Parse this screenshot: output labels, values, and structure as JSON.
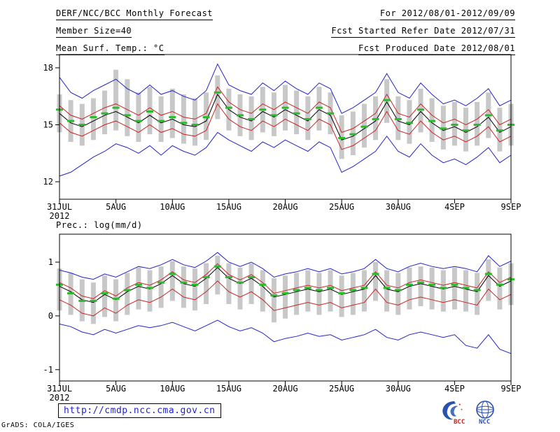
{
  "header": {
    "left": [
      "DERF/NCC/BCC Monthly Forecast",
      "Member Size=40",
      "Mean Surf. Temp.: °C"
    ],
    "right": [
      "For 2012/08/01-2012/09/09",
      "Fcst Started Refer Date 2012/07/31",
      "Fcst Produced Date 2012/08/01"
    ]
  },
  "footer": {
    "url": "http://cmdp.ncc.cma.gov.cn",
    "credit": "GrADS: COLA/IGES",
    "logos": [
      {
        "name": "bcc-logo",
        "text": "BCC"
      },
      {
        "name": "ncc-logo",
        "text": "NCC"
      }
    ]
  },
  "colors": {
    "line_blue": "#2222cc",
    "line_red": "#cc2222",
    "line_black": "#000000",
    "median_green": "#2db92d",
    "spread_gray": "#c8c8c8",
    "frame": "#000000",
    "url_blue": "#2222cc",
    "logo_blue": "#2a52b0",
    "logo_red": "#cc2222"
  },
  "chart_data": [
    {
      "type": "line",
      "name": "surface-temperature",
      "title": "Mean Surf. Temp.: °C",
      "x_tick_labels": [
        "31JUL",
        "5AUG",
        "10AUG",
        "15AUG",
        "20AUG",
        "25AUG",
        "30AUG",
        "4SEP",
        "9SEP"
      ],
      "x_tick_positions": [
        0,
        5,
        10,
        15,
        20,
        25,
        30,
        35,
        40
      ],
      "x_year_label": "2012",
      "n_points": 41,
      "ylim": [
        11.08,
        18.7
      ],
      "yticks": [
        12,
        15,
        18
      ],
      "grid": false,
      "legend": "none",
      "bars": {
        "name": "ensemble-spread-bar",
        "color": "#c8c8c8",
        "top": [
          16.6,
          16.3,
          16.1,
          16.4,
          16.8,
          17.9,
          17.4,
          16.7,
          17.0,
          16.5,
          16.9,
          16.6,
          16.4,
          16.7,
          17.6,
          16.9,
          16.6,
          16.5,
          17.0,
          16.7,
          17.1,
          16.8,
          16.5,
          17.0,
          16.7,
          15.5,
          15.7,
          16.1,
          16.5,
          17.4,
          16.5,
          16.3,
          16.9,
          16.4,
          16.0,
          16.2,
          15.9,
          16.2,
          16.7,
          15.9,
          16.1
        ],
        "bottom": [
          14.6,
          14.1,
          13.9,
          14.2,
          14.5,
          14.7,
          14.4,
          14.1,
          14.5,
          14.1,
          14.3,
          14.0,
          13.9,
          14.2,
          15.3,
          14.7,
          14.4,
          14.2,
          14.6,
          14.4,
          14.7,
          14.5,
          14.2,
          14.7,
          14.5,
          13.2,
          13.4,
          13.8,
          14.2,
          15.1,
          14.2,
          14.0,
          14.6,
          14.1,
          13.7,
          13.9,
          13.6,
          13.9,
          14.3,
          13.6,
          13.9
        ]
      },
      "series": [
        {
          "name": "ensemble-max",
          "type": "line",
          "color": "#2222cc",
          "values": [
            17.5,
            16.7,
            16.4,
            16.8,
            17.1,
            17.4,
            16.9,
            16.6,
            17.1,
            16.6,
            16.8,
            16.5,
            16.3,
            16.8,
            18.2,
            17.1,
            16.8,
            16.6,
            17.2,
            16.8,
            17.3,
            16.9,
            16.6,
            17.2,
            16.9,
            15.6,
            15.9,
            16.3,
            16.7,
            17.7,
            16.7,
            16.4,
            17.2,
            16.6,
            16.1,
            16.3,
            16.0,
            16.4,
            16.9,
            16.0,
            16.3
          ]
        },
        {
          "name": "ensemble-min",
          "type": "line",
          "color": "#2222cc",
          "values": [
            12.3,
            12.5,
            12.9,
            13.3,
            13.6,
            14.0,
            13.8,
            13.5,
            13.9,
            13.4,
            13.9,
            13.6,
            13.4,
            13.8,
            14.6,
            14.2,
            13.9,
            13.6,
            14.1,
            13.8,
            14.2,
            13.9,
            13.6,
            14.1,
            13.8,
            12.5,
            12.8,
            13.2,
            13.6,
            14.4,
            13.6,
            13.3,
            14.0,
            13.4,
            13.0,
            13.2,
            12.9,
            13.3,
            13.8,
            13.0,
            13.4
          ]
        },
        {
          "name": "upper-band",
          "type": "line",
          "color": "#cc2222",
          "values": [
            16.0,
            15.5,
            15.3,
            15.6,
            15.9,
            16.1,
            15.8,
            15.5,
            15.9,
            15.5,
            15.7,
            15.4,
            15.3,
            15.6,
            17.0,
            16.2,
            15.8,
            15.6,
            16.1,
            15.8,
            16.2,
            15.9,
            15.6,
            16.2,
            15.9,
            14.6,
            14.8,
            15.2,
            15.6,
            16.6,
            15.6,
            15.4,
            16.1,
            15.5,
            15.1,
            15.3,
            15.0,
            15.3,
            15.8,
            15.0,
            15.3
          ]
        },
        {
          "name": "lower-band",
          "type": "line",
          "color": "#cc2222",
          "values": [
            15.1,
            14.6,
            14.4,
            14.7,
            15.0,
            15.2,
            14.9,
            14.6,
            15.0,
            14.6,
            14.8,
            14.5,
            14.4,
            14.7,
            16.1,
            15.3,
            14.9,
            14.7,
            15.2,
            14.9,
            15.3,
            15.0,
            14.7,
            15.3,
            15.0,
            13.7,
            13.9,
            14.3,
            14.7,
            15.7,
            14.7,
            14.5,
            15.2,
            14.6,
            14.2,
            14.4,
            14.1,
            14.4,
            14.9,
            14.1,
            14.4
          ]
        },
        {
          "name": "ensemble-mean",
          "type": "line",
          "color": "#000000",
          "values": [
            15.6,
            15.1,
            14.9,
            15.2,
            15.5,
            15.7,
            15.4,
            15.1,
            15.5,
            15.1,
            15.3,
            15.0,
            14.9,
            15.2,
            16.6,
            15.8,
            15.4,
            15.2,
            15.7,
            15.4,
            15.8,
            15.5,
            15.2,
            15.8,
            15.5,
            14.2,
            14.4,
            14.8,
            15.2,
            16.2,
            15.2,
            15.0,
            15.7,
            15.1,
            14.7,
            14.9,
            14.6,
            14.9,
            15.4,
            14.6,
            14.9
          ]
        },
        {
          "name": "ensemble-median",
          "type": "dashes",
          "color": "#2db92d",
          "values": [
            15.8,
            15.2,
            15.0,
            15.4,
            15.6,
            15.9,
            15.5,
            15.2,
            15.7,
            15.2,
            15.4,
            15.1,
            15.0,
            15.4,
            16.7,
            15.9,
            15.5,
            15.3,
            15.8,
            15.5,
            15.9,
            15.6,
            15.3,
            15.9,
            15.6,
            14.3,
            14.5,
            14.9,
            15.3,
            16.3,
            15.3,
            15.1,
            15.8,
            15.2,
            14.8,
            15.0,
            14.7,
            15.0,
            15.5,
            14.7,
            15.0
          ]
        }
      ]
    },
    {
      "type": "line",
      "name": "precipitation",
      "title": "Prec.: log(mm/d)",
      "x_tick_labels": [
        "31JUL",
        "5AUG",
        "10AUG",
        "15AUG",
        "20AUG",
        "25AUG",
        "30AUG",
        "4SEP",
        "9SEP"
      ],
      "x_tick_positions": [
        0,
        5,
        10,
        15,
        20,
        25,
        30,
        35,
        40
      ],
      "x_year_label": "2012",
      "n_points": 41,
      "ylim": [
        -1.21,
        1.52
      ],
      "yticks": [
        -1,
        0,
        1
      ],
      "grid": false,
      "legend": "none",
      "bars": {
        "name": "ensemble-spread-bar",
        "color": "#c8c8c8",
        "top": [
          0.88,
          0.8,
          0.68,
          0.62,
          0.75,
          0.68,
          0.8,
          0.9,
          0.85,
          0.92,
          1.02,
          0.92,
          0.88,
          0.98,
          1.12,
          0.98,
          0.9,
          0.98,
          0.85,
          0.7,
          0.75,
          0.8,
          0.85,
          0.8,
          0.85,
          0.75,
          0.8,
          0.85,
          1.0,
          0.85,
          0.8,
          0.9,
          0.92,
          0.9,
          0.85,
          0.9,
          0.85,
          0.8,
          1.05,
          0.9,
          0.98
        ],
        "bottom": [
          0.1,
          0.02,
          -0.1,
          -0.15,
          -0.02,
          -0.1,
          0.02,
          0.12,
          0.08,
          0.15,
          0.28,
          0.15,
          0.1,
          0.22,
          0.4,
          0.22,
          0.12,
          0.22,
          0.08,
          -0.12,
          -0.05,
          0.02,
          0.08,
          0.02,
          0.08,
          -0.02,
          0.02,
          0.08,
          0.28,
          0.08,
          0.02,
          0.12,
          0.18,
          0.12,
          0.08,
          0.12,
          0.08,
          0.02,
          0.28,
          0.12,
          0.2
        ]
      },
      "series": [
        {
          "name": "ensemble-max",
          "type": "line",
          "color": "#2222cc",
          "values": [
            0.85,
            0.8,
            0.72,
            0.68,
            0.78,
            0.72,
            0.82,
            0.92,
            0.88,
            0.95,
            1.05,
            0.95,
            0.9,
            1.02,
            1.18,
            1.0,
            0.92,
            1.0,
            0.88,
            0.72,
            0.78,
            0.82,
            0.88,
            0.82,
            0.88,
            0.78,
            0.82,
            0.88,
            1.05,
            0.88,
            0.82,
            0.92,
            0.98,
            0.92,
            0.88,
            0.92,
            0.88,
            0.82,
            1.12,
            0.92,
            1.02
          ]
        },
        {
          "name": "ensemble-min",
          "type": "line",
          "color": "#2222cc",
          "values": [
            -0.15,
            -0.2,
            -0.3,
            -0.35,
            -0.25,
            -0.32,
            -0.25,
            -0.18,
            -0.22,
            -0.18,
            -0.12,
            -0.2,
            -0.28,
            -0.18,
            -0.08,
            -0.2,
            -0.28,
            -0.22,
            -0.32,
            -0.48,
            -0.42,
            -0.38,
            -0.32,
            -0.38,
            -0.35,
            -0.45,
            -0.4,
            -0.35,
            -0.25,
            -0.4,
            -0.45,
            -0.35,
            -0.3,
            -0.35,
            -0.4,
            -0.35,
            -0.55,
            -0.6,
            -0.35,
            -0.62,
            -0.7
          ]
        },
        {
          "name": "upper-band",
          "type": "line",
          "color": "#cc2222",
          "values": [
            0.62,
            0.52,
            0.37,
            0.32,
            0.47,
            0.37,
            0.52,
            0.62,
            0.57,
            0.67,
            0.82,
            0.67,
            0.62,
            0.77,
            0.97,
            0.77,
            0.67,
            0.77,
            0.62,
            0.42,
            0.47,
            0.52,
            0.57,
            0.52,
            0.57,
            0.47,
            0.52,
            0.57,
            0.82,
            0.57,
            0.52,
            0.62,
            0.67,
            0.62,
            0.57,
            0.62,
            0.57,
            0.52,
            0.82,
            0.62,
            0.72
          ]
        },
        {
          "name": "lower-band",
          "type": "line",
          "color": "#cc2222",
          "values": [
            0.3,
            0.2,
            0.05,
            0.0,
            0.15,
            0.05,
            0.2,
            0.3,
            0.25,
            0.35,
            0.5,
            0.35,
            0.3,
            0.45,
            0.65,
            0.45,
            0.35,
            0.45,
            0.3,
            0.1,
            0.15,
            0.2,
            0.25,
            0.2,
            0.25,
            0.15,
            0.2,
            0.25,
            0.5,
            0.25,
            0.2,
            0.3,
            0.35,
            0.3,
            0.25,
            0.3,
            0.25,
            0.2,
            0.5,
            0.3,
            0.4
          ]
        },
        {
          "name": "ensemble-mean",
          "type": "line",
          "color": "#000000",
          "values": [
            0.55,
            0.45,
            0.3,
            0.25,
            0.4,
            0.3,
            0.45,
            0.55,
            0.5,
            0.6,
            0.75,
            0.6,
            0.55,
            0.7,
            0.9,
            0.7,
            0.6,
            0.7,
            0.55,
            0.35,
            0.4,
            0.45,
            0.5,
            0.45,
            0.5,
            0.4,
            0.45,
            0.5,
            0.75,
            0.5,
            0.45,
            0.55,
            0.6,
            0.55,
            0.5,
            0.55,
            0.5,
            0.45,
            0.75,
            0.55,
            0.65
          ]
        },
        {
          "name": "ensemble-median",
          "type": "dashes",
          "color": "#2db92d",
          "values": [
            0.58,
            0.42,
            0.28,
            0.28,
            0.42,
            0.32,
            0.48,
            0.58,
            0.52,
            0.62,
            0.78,
            0.62,
            0.58,
            0.72,
            0.92,
            0.72,
            0.62,
            0.72,
            0.58,
            0.38,
            0.42,
            0.48,
            0.52,
            0.48,
            0.52,
            0.42,
            0.48,
            0.52,
            0.78,
            0.52,
            0.48,
            0.58,
            0.62,
            0.58,
            0.52,
            0.58,
            0.52,
            0.48,
            0.78,
            0.58,
            0.68
          ]
        }
      ]
    }
  ]
}
